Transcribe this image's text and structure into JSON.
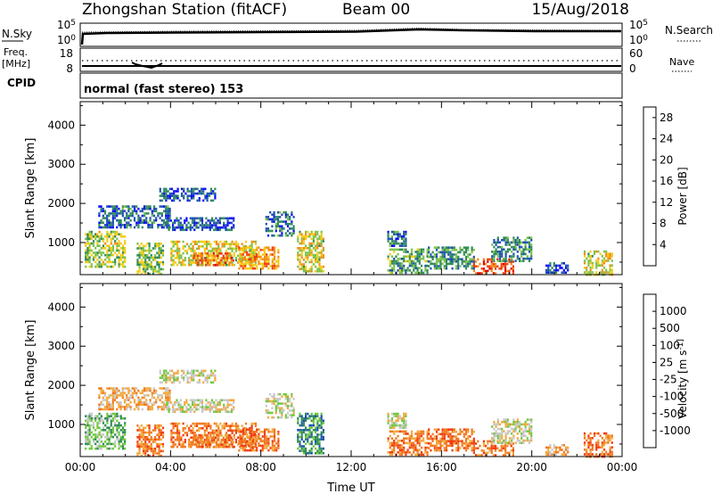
{
  "header": {
    "station": "Zhongshan Station (fitACF)",
    "beam": "Beam 00",
    "date": "15/Aug/2018"
  },
  "panels": {
    "nsky": {
      "left_label": "N.Sky",
      "right_label": "N.Search",
      "left_ticks": [
        "10^5",
        "10^0"
      ],
      "right_ticks": [
        "10^5",
        "10^0"
      ]
    },
    "freq": {
      "left_label_1": "Freq.",
      "left_label_2": "[MHz]",
      "left_ticks": [
        "18",
        "8"
      ],
      "right_label": "Nave",
      "right_ticks": [
        "60",
        "0"
      ]
    },
    "cpid": {
      "label": "CPID",
      "mode": "normal (fast stereo) 153"
    }
  },
  "colors": {
    "power_scale": [
      "#0a0afa",
      "#1e50b4",
      "#2e8b57",
      "#7dc24a",
      "#f2cc12",
      "#f28c14",
      "#f03c10",
      "#dc0000"
    ],
    "velocity_scale": [
      "#dc0000",
      "#f03c10",
      "#f2781e",
      "#f2a83c",
      "#c8c8c8",
      "#6ec83c",
      "#2e8b57",
      "#1e50b4",
      "#0a2ad2"
    ]
  },
  "chart_data": [
    {
      "type": "heatmap",
      "name": "power",
      "ylabel": "Slant Range [km]",
      "xlabel": "Time UT",
      "ylim": [
        180,
        4600
      ],
      "xlim": [
        0,
        24
      ],
      "y_ticks": [
        "1000",
        "2000",
        "3000",
        "4000"
      ],
      "x_ticks": [
        "00:00",
        "04:00",
        "08:00",
        "12:00",
        "16:00",
        "20:00",
        "00:00"
      ],
      "colorbar": {
        "label": "Power [dB]",
        "ticks": [
          "4",
          "8",
          "12",
          "16",
          "20",
          "24",
          "28"
        ],
        "range": [
          0,
          30
        ]
      },
      "regions": [
        {
          "t0": 0.2,
          "t1": 2.0,
          "r0": 400,
          "r1": 1300,
          "level": 14
        },
        {
          "t0": 0.8,
          "t1": 4.0,
          "r0": 1400,
          "r1": 1950,
          "level": 7
        },
        {
          "t0": 2.5,
          "t1": 3.7,
          "r0": 200,
          "r1": 1000,
          "level": 13
        },
        {
          "t0": 3.5,
          "t1": 6.0,
          "r0": 2050,
          "r1": 2400,
          "level": 6
        },
        {
          "t0": 3.8,
          "t1": 6.8,
          "r0": 1300,
          "r1": 1650,
          "level": 6
        },
        {
          "t0": 4.0,
          "t1": 7.8,
          "r0": 400,
          "r1": 1050,
          "level": 16
        },
        {
          "t0": 5.0,
          "t1": 6.8,
          "r0": 450,
          "r1": 750,
          "level": 22
        },
        {
          "t0": 7.0,
          "t1": 8.8,
          "r0": 350,
          "r1": 900,
          "level": 20
        },
        {
          "t0": 8.2,
          "t1": 9.5,
          "r0": 1150,
          "r1": 1800,
          "level": 7
        },
        {
          "t0": 9.6,
          "t1": 10.8,
          "r0": 250,
          "r1": 1300,
          "level": 16
        },
        {
          "t0": 13.6,
          "t1": 15.4,
          "r0": 200,
          "r1": 850,
          "level": 11
        },
        {
          "t0": 13.6,
          "t1": 14.4,
          "r0": 900,
          "r1": 1300,
          "level": 7
        },
        {
          "t0": 15.4,
          "t1": 17.4,
          "r0": 350,
          "r1": 900,
          "level": 10
        },
        {
          "t0": 17.4,
          "t1": 19.2,
          "r0": 200,
          "r1": 600,
          "level": 24
        },
        {
          "t0": 18.2,
          "t1": 20.0,
          "r0": 500,
          "r1": 1150,
          "level": 9
        },
        {
          "t0": 20.6,
          "t1": 21.6,
          "r0": 250,
          "r1": 500,
          "level": 6
        },
        {
          "t0": 22.3,
          "t1": 23.6,
          "r0": 200,
          "r1": 800,
          "level": 16
        }
      ]
    },
    {
      "type": "heatmap",
      "name": "velocity",
      "ylabel": "Slant Range [km]",
      "xlabel": "Time UT",
      "ylim": [
        180,
        4600
      ],
      "xlim": [
        0,
        24
      ],
      "y_ticks": [
        "1000",
        "2000",
        "3000",
        "4000"
      ],
      "x_ticks": [
        "00:00",
        "04:00",
        "08:00",
        "12:00",
        "16:00",
        "20:00",
        "00:00"
      ],
      "colorbar": {
        "label": "Velocity [m s^-1]",
        "ticks": [
          "1000",
          "500",
          "100",
          "25",
          "-25",
          "-100",
          "-500",
          "-1000"
        ]
      },
      "regions": [
        {
          "t0": 0.2,
          "t1": 2.0,
          "r0": 400,
          "r1": 1300,
          "class": 5
        },
        {
          "t0": 0.8,
          "t1": 4.0,
          "r0": 1400,
          "r1": 1950,
          "class": 3
        },
        {
          "t0": 2.5,
          "t1": 3.7,
          "r0": 200,
          "r1": 1000,
          "class": 2
        },
        {
          "t0": 3.5,
          "t1": 6.0,
          "r0": 2050,
          "r1": 2400,
          "class": 4
        },
        {
          "t0": 3.8,
          "t1": 6.8,
          "r0": 1300,
          "r1": 1650,
          "class": 4
        },
        {
          "t0": 4.0,
          "t1": 7.8,
          "r0": 400,
          "r1": 1050,
          "class": 2
        },
        {
          "t0": 5.0,
          "t1": 6.8,
          "r0": 450,
          "r1": 750,
          "class": 2
        },
        {
          "t0": 7.0,
          "t1": 8.8,
          "r0": 350,
          "r1": 900,
          "class": 2
        },
        {
          "t0": 8.2,
          "t1": 9.5,
          "r0": 1150,
          "r1": 1800,
          "class": 4
        },
        {
          "t0": 9.6,
          "t1": 10.8,
          "r0": 250,
          "r1": 1300,
          "class": 6
        },
        {
          "t0": 13.6,
          "t1": 15.4,
          "r0": 200,
          "r1": 850,
          "class": 2
        },
        {
          "t0": 13.6,
          "t1": 14.4,
          "r0": 900,
          "r1": 1300,
          "class": 4
        },
        {
          "t0": 15.4,
          "t1": 17.4,
          "r0": 350,
          "r1": 900,
          "class": 2
        },
        {
          "t0": 17.4,
          "t1": 19.2,
          "r0": 200,
          "r1": 600,
          "class": 2
        },
        {
          "t0": 18.2,
          "t1": 20.0,
          "r0": 500,
          "r1": 1150,
          "class": 4
        },
        {
          "t0": 20.6,
          "t1": 21.6,
          "r0": 250,
          "r1": 500,
          "class": 3
        },
        {
          "t0": 22.3,
          "t1": 23.6,
          "r0": 200,
          "r1": 800,
          "class": 2
        }
      ]
    }
  ]
}
